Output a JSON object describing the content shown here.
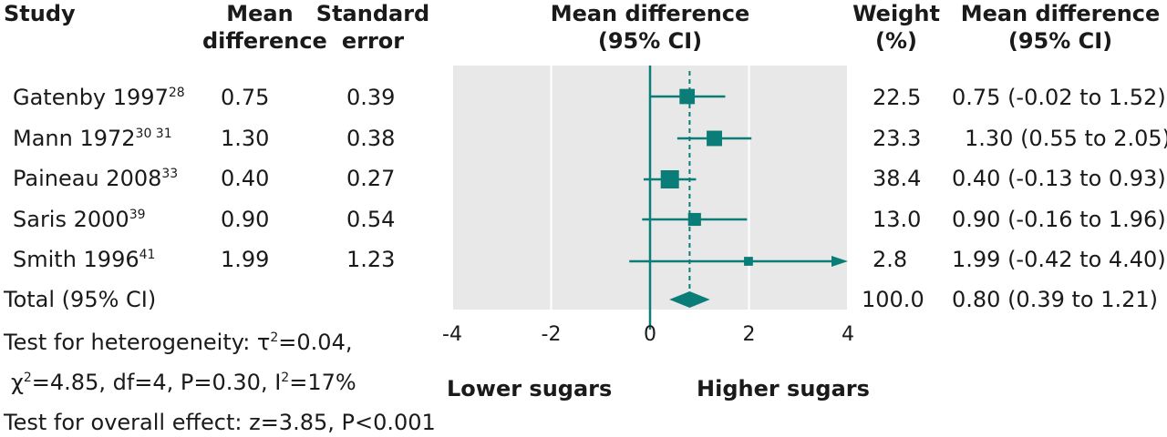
{
  "headers": {
    "study": "Study",
    "mean_diff": [
      "Mean",
      "difference"
    ],
    "se": [
      "Standard",
      "error"
    ],
    "plot": [
      "Mean difference",
      "(95% CI)"
    ],
    "weight": [
      "Weight",
      "(%)"
    ],
    "ci_col": [
      "Mean difference",
      "(95% CI)"
    ]
  },
  "rows": [
    {
      "study": "Gatenby 1997",
      "ref": "28",
      "md": "0.75",
      "se": "0.39",
      "weight": "22.5",
      "ci": "0.75 (-0.02 to 1.52)"
    },
    {
      "study": "Mann 1972",
      "ref": "30 31",
      "md": "1.30",
      "se": "0.38",
      "weight": "23.3",
      "ci": "1.30 (0.55 to 2.05)"
    },
    {
      "study": "Paineau 2008",
      "ref": "33",
      "md": "0.40",
      "se": "0.27",
      "weight": "38.4",
      "ci": "0.40 (-0.13 to 0.93)"
    },
    {
      "study": "Saris 2000",
      "ref": "39",
      "md": "0.90",
      "se": "0.54",
      "weight": "13.0",
      "ci": "0.90 (-0.16 to 1.96)"
    },
    {
      "study": "Smith 1996",
      "ref": "41",
      "md": "1.99",
      "se": "1.23",
      "weight": "2.8",
      "ci": "1.99 (-0.42 to 4.40)"
    }
  ],
  "total": {
    "label": "Total (95% CI)",
    "weight": "100.0",
    "ci": "0.80 (0.39 to 1.21)"
  },
  "notes": {
    "het1_prefix": "Test for heterogeneity: τ",
    "het1_sup": "2",
    "het1_suffix": "=0.04,",
    "het2_a": "χ",
    "het2_sup": "2",
    "het2_b": "=4.85, df=4, P=0.30, I",
    "het2_sup2": "2",
    "het2_c": "=17%",
    "overall": "Test for overall effect: z=3.85, P<0.001"
  },
  "favours": {
    "left": "Lower sugars",
    "right": "Higher sugars"
  },
  "colors": {
    "accent": "#0b7d78",
    "panel": "#e8e8e8",
    "grid": "#ffffff"
  },
  "chart_data": {
    "type": "forest",
    "xlim": [
      -4,
      4
    ],
    "ticks": [
      -4,
      -2,
      0,
      2,
      4
    ],
    "tick_labels": [
      "-4",
      "-2",
      "0",
      "2",
      "4"
    ],
    "studies": [
      {
        "name": "Gatenby 1997",
        "estimate": 0.75,
        "lower": -0.02,
        "upper": 1.52,
        "weight": 22.5
      },
      {
        "name": "Mann 1972",
        "estimate": 1.3,
        "lower": 0.55,
        "upper": 2.05,
        "weight": 23.3
      },
      {
        "name": "Paineau 2008",
        "estimate": 0.4,
        "lower": -0.13,
        "upper": 0.93,
        "weight": 38.4
      },
      {
        "name": "Saris 2000",
        "estimate": 0.9,
        "lower": -0.16,
        "upper": 1.96,
        "weight": 13.0
      },
      {
        "name": "Smith 1996",
        "estimate": 1.99,
        "lower": -0.42,
        "upper": 4.4,
        "weight": 2.8,
        "arrow_right": true
      }
    ],
    "pooled": {
      "estimate": 0.8,
      "lower": 0.39,
      "upper": 1.21
    },
    "null_line": 0,
    "grid": true
  }
}
